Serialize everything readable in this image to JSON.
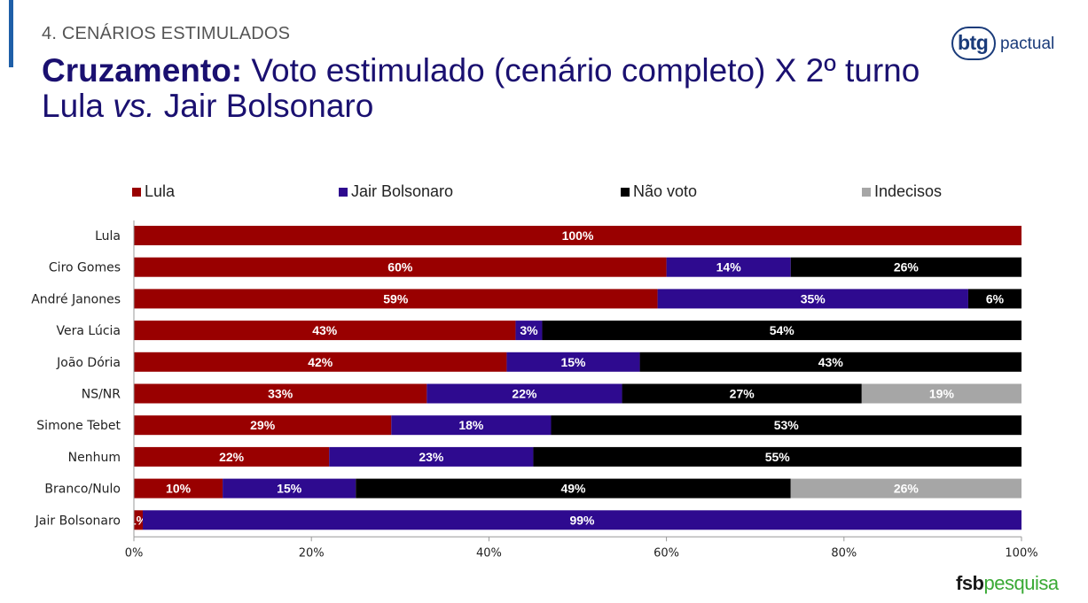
{
  "header": {
    "section": "4. CENÁRIOS ESTIMULADOS",
    "title_bold": "Cruzamento:",
    "title_part1": " Voto estimulado (cenário completo) X 2º turno Lula ",
    "title_italic": "vs.",
    "title_part2": " Jair Bolsonaro"
  },
  "brand": {
    "btg": "btg",
    "pactual": "pactual",
    "fsb": "fsb",
    "pesquisa": "pesquisa"
  },
  "colors": {
    "lula": "#990000",
    "bolsonaro": "#2e0a8f",
    "nao_voto": "#000000",
    "indecisos": "#a6a6a6"
  },
  "chart_data": {
    "type": "bar",
    "orientation": "horizontal",
    "stacked": true,
    "categories": [
      "Lula",
      "Ciro Gomes",
      "André Janones",
      "Vera Lúcia",
      "João Dória",
      "NS/NR",
      "Simone Tebet",
      "Nenhum",
      "Branco/Nulo",
      "Jair Bolsonaro"
    ],
    "series": [
      {
        "name": "Lula",
        "color": "#990000",
        "values": [
          100,
          60,
          59,
          43,
          42,
          33,
          29,
          22,
          10,
          1
        ],
        "labels": [
          "100%",
          "60%",
          "59%",
          "43%",
          "42%",
          "33%",
          "29%",
          "22%",
          "10%",
          "1%"
        ]
      },
      {
        "name": "Jair Bolsonaro",
        "color": "#2e0a8f",
        "values": [
          0,
          14,
          35,
          3,
          15,
          22,
          18,
          23,
          15,
          99
        ],
        "labels": [
          "",
          "14%",
          "35%",
          "3%",
          "15%",
          "22%",
          "18%",
          "23%",
          "15%",
          "99%"
        ]
      },
      {
        "name": "Não voto",
        "color": "#000000",
        "values": [
          0,
          26,
          6,
          54,
          43,
          27,
          53,
          55,
          49,
          0
        ],
        "labels": [
          "",
          "26%",
          "6%",
          "54%",
          "43%",
          "27%",
          "53%",
          "55%",
          "49%",
          ""
        ]
      },
      {
        "name": "Indecisos",
        "color": "#a6a6a6",
        "values": [
          0,
          0,
          0,
          0,
          0,
          19,
          0,
          0,
          26,
          0
        ],
        "labels": [
          "",
          "",
          "",
          "",
          "",
          "19%",
          "",
          "",
          "26%",
          ""
        ]
      }
    ],
    "xlim": [
      0,
      100
    ],
    "xticks": [
      "0%",
      "20%",
      "40%",
      "60%",
      "80%",
      "100%"
    ],
    "legend_position": "top",
    "grid": false
  }
}
